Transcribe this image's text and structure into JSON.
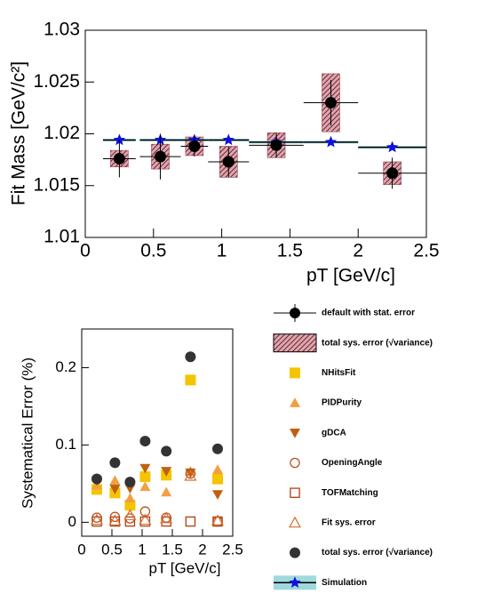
{
  "chart_data": [
    {
      "type": "errorbar",
      "x_label": "pT [GeV/c]",
      "y_label": "Fit Mass [GeV/c²]",
      "x": [
        0.25,
        0.55,
        0.8,
        1.05,
        1.4,
        1.8,
        2.25
      ],
      "xerr": [
        0.12,
        0.15,
        0.1,
        0.15,
        0.2,
        0.2,
        0.25
      ],
      "xlim": [
        0,
        2.5
      ],
      "xticks": [
        0,
        0.5,
        1,
        1.5,
        2,
        2.5
      ],
      "ylim": [
        1.01,
        1.03
      ],
      "yticks": [
        1.01,
        1.015,
        1.02,
        1.025,
        1.03
      ],
      "series": [
        {
          "name": "default with stat. error",
          "color": "#000000",
          "marker": "circle",
          "values": [
            1.0176,
            1.0178,
            1.0188,
            1.0173,
            1.0189,
            1.023,
            1.0162
          ],
          "errors": [
            0.0018,
            0.0022,
            0.001,
            0.0015,
            0.0012,
            0.0022,
            0.0015
          ]
        },
        {
          "name": "total sys. error (√variance)",
          "color": "#8b2a3a",
          "marker": "box",
          "errors": [
            0.0008,
            0.0012,
            0.0009,
            0.0015,
            0.0012,
            0.0028,
            0.0011
          ]
        },
        {
          "name": "Simulation",
          "color": "#1010e0",
          "line_color": "#000000",
          "band_color": "#5fc0c8",
          "marker": "star",
          "values": [
            1.0194,
            1.0194,
            1.0194,
            1.0194,
            1.0192,
            1.0192,
            1.0187
          ]
        }
      ]
    },
    {
      "type": "scatter",
      "x_label": "pT [GeV/c]",
      "y_label": "Systematical Error (%)",
      "x": [
        0.25,
        0.55,
        0.8,
        1.05,
        1.4,
        1.8,
        2.25
      ],
      "xlim": [
        0,
        2.5
      ],
      "xticks": [
        0,
        0.5,
        1,
        1.5,
        2,
        2.5
      ],
      "ylim": [
        -0.018,
        0.25
      ],
      "yticks": [
        0,
        0.1,
        0.2
      ],
      "series": [
        {
          "name": "NHitsFit",
          "color": "#f5c400",
          "marker": "square",
          "values": [
            0.0425,
            0.038,
            0.022,
            0.059,
            0.061,
            0.184,
            0.056
          ]
        },
        {
          "name": "PIDPurity",
          "color": "#f0a040",
          "marker": "triangle",
          "values": [
            0.048,
            0.054,
            0.031,
            0.046,
            0.039,
            0.066,
            0.068
          ]
        },
        {
          "name": "gDCA",
          "color": "#c06010",
          "marker": "triangle-down",
          "values": [
            0.054,
            0.043,
            0.044,
            0.07,
            0.066,
            0.064,
            0.036
          ]
        },
        {
          "name": "OpeningAngle",
          "color": "#c05020",
          "marker": "open-circle",
          "values": [
            0.006,
            0.007,
            0.005,
            0.014,
            0.006,
            0.063,
            0.001
          ]
        },
        {
          "name": "TOFMatching",
          "color": "#b04010",
          "marker": "open-square",
          "values": [
            0.001,
            0.001,
            0.001,
            0.001,
            0.001,
            0.001,
            0.001
          ]
        },
        {
          "name": "Fit sys. error",
          "color": "#d07030",
          "marker": "open-triangle",
          "values": [
            0.003,
            0.002,
            0.009,
            0.003,
            0.005,
            0.06,
            0.002
          ]
        },
        {
          "name": "total sys. error (√variance)",
          "color": "#333333",
          "marker": "circle",
          "values": [
            0.056,
            0.077,
            0.052,
            0.105,
            0.092,
            0.214,
            0.095
          ]
        }
      ]
    }
  ]
}
